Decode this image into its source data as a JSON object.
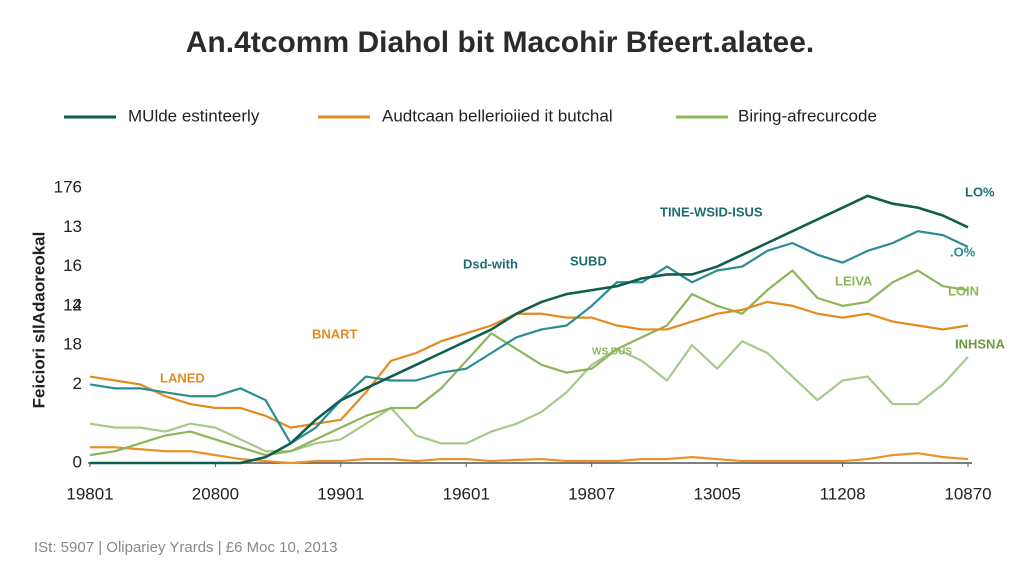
{
  "chart_data": {
    "type": "line",
    "title": "An.4tcomm Diahol bit Macohir Bfeert.alatee.",
    "y_label": "Feiciori sIlAdaoreokal",
    "footer": "ISt: 5907 | Olipariey Yrards | £6 Moc 10, 2013",
    "annotations": [
      "TINE-WSID-ISUS",
      "LO%",
      ".O%",
      "LEIVA",
      "LOIN",
      "INHSNA",
      "Dsd-with",
      "SUBD",
      "BNART",
      "LANED",
      "WS DUS"
    ],
    "x": [
      0,
      2,
      4,
      6,
      8,
      10,
      12,
      14,
      16,
      18,
      20,
      22,
      24,
      26,
      28,
      30,
      32,
      34,
      36,
      38,
      40,
      42,
      44,
      46,
      48,
      50,
      52,
      54,
      56,
      58,
      60,
      62,
      64,
      66,
      68,
      70
    ],
    "xlim": [
      0,
      70
    ],
    "xticks": [
      {
        "value": 0,
        "label": "19801"
      },
      {
        "value": 10,
        "label": "20800"
      },
      {
        "value": 20,
        "label": "19901"
      },
      {
        "value": 30,
        "label": "19601"
      },
      {
        "value": 40,
        "label": "19807"
      },
      {
        "value": 50,
        "label": "13005"
      },
      {
        "value": 60,
        "label": "11208"
      },
      {
        "value": 70,
        "label": "10870"
      }
    ],
    "ylim": [
      0,
      7
    ],
    "yticks": [
      0,
      2,
      4,
      {
        "value": 3,
        "label": "18"
      },
      {
        "value": 4,
        "label": "12"
      },
      {
        "value": 5,
        "label": "16"
      },
      {
        "value": 6,
        "label": "13"
      },
      {
        "value": 7,
        "label": "176"
      }
    ],
    "series": [
      {
        "name": "MUlde estinteerly",
        "color": "#0f5e4e",
        "values": [
          0,
          0,
          0,
          0,
          0,
          0,
          0,
          0.15,
          0.5,
          1.1,
          1.6,
          1.9,
          2.2,
          2.5,
          2.8,
          3.1,
          3.4,
          3.8,
          4.1,
          4.3,
          4.4,
          4.5,
          4.7,
          4.8,
          4.8,
          5.0,
          5.3,
          5.6,
          5.9,
          6.2,
          6.5,
          6.8,
          6.6,
          6.5,
          6.3,
          6.0
        ]
      },
      {
        "name": "Audtcaan bellerioiied it butchal",
        "color": "#e38b1f",
        "values": [
          2.2,
          2.1,
          2.0,
          1.7,
          1.5,
          1.4,
          1.4,
          1.2,
          0.9,
          1.0,
          1.1,
          1.8,
          2.6,
          2.8,
          3.1,
          3.3,
          3.5,
          3.8,
          3.8,
          3.7,
          3.7,
          3.5,
          3.4,
          3.4,
          3.6,
          3.8,
          3.9,
          4.1,
          4.0,
          3.8,
          3.7,
          3.8,
          3.6,
          3.5,
          3.4,
          3.5
        ]
      },
      {
        "name": "Biring-afrecurcode",
        "color": "#8db55a",
        "values": [
          0.2,
          0.3,
          0.5,
          0.7,
          0.8,
          0.6,
          0.4,
          0.2,
          0.3,
          0.6,
          0.9,
          1.2,
          1.4,
          1.4,
          1.9,
          2.6,
          3.3,
          2.9,
          2.5,
          2.3,
          2.4,
          2.9,
          3.2,
          3.5,
          4.3,
          4.0,
          3.8,
          4.4,
          4.9,
          4.2,
          4.0,
          4.1,
          4.6,
          4.9,
          4.5,
          4.4
        ]
      },
      {
        "color": "#2a8d93",
        "values": [
          2.0,
          1.9,
          1.9,
          1.8,
          1.7,
          1.7,
          1.9,
          1.6,
          0.5,
          0.9,
          1.6,
          2.2,
          2.1,
          2.1,
          2.3,
          2.4,
          2.8,
          3.2,
          3.4,
          3.5,
          4.0,
          4.6,
          4.6,
          5.0,
          4.6,
          4.9,
          5.0,
          5.4,
          5.6,
          5.3,
          5.1,
          5.4,
          5.6,
          5.9,
          5.8,
          5.5
        ]
      },
      {
        "color": "#a8c98a",
        "values": [
          1.0,
          0.9,
          0.9,
          0.8,
          1.0,
          0.9,
          0.6,
          0.3,
          0.3,
          0.5,
          0.6,
          1.0,
          1.4,
          0.7,
          0.5,
          0.5,
          0.8,
          1.0,
          1.3,
          1.8,
          2.5,
          2.9,
          2.6,
          2.1,
          3.0,
          2.4,
          3.1,
          2.8,
          2.2,
          1.6,
          2.1,
          2.2,
          1.5,
          1.5,
          2.0,
          2.7
        ]
      },
      {
        "color": "#e8922a",
        "values": [
          0.4,
          0.4,
          0.35,
          0.3,
          0.3,
          0.2,
          0.1,
          0.05,
          0,
          0.05,
          0.05,
          0.1,
          0.1,
          0.05,
          0.1,
          0.1,
          0.05,
          0.08,
          0.1,
          0.05,
          0.05,
          0.05,
          0.1,
          0.1,
          0.15,
          0.1,
          0.05,
          0.05,
          0.05,
          0.05,
          0.05,
          0.1,
          0.2,
          0.25,
          0.15,
          0.1
        ]
      }
    ]
  }
}
